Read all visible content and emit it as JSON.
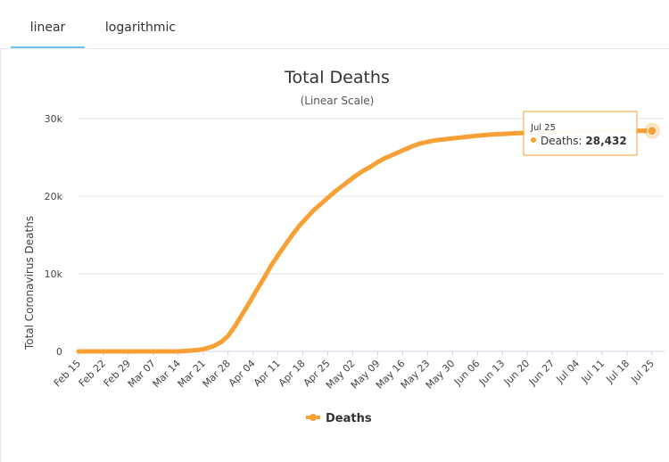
{
  "tabs": {
    "linear": "linear",
    "log": "logarithmic"
  },
  "chart_data": {
    "type": "line",
    "title": "Total Deaths",
    "subtitle": "(Linear Scale)",
    "ylabel": "Total Coronavirus Deaths",
    "xlabel": "",
    "ylim": [
      0,
      30000
    ],
    "yticks": [
      0,
      10000,
      20000,
      30000
    ],
    "ytick_labels": [
      "0",
      "10k",
      "20k",
      "30k"
    ],
    "categories": [
      "Feb 15",
      "Feb 22",
      "Feb 29",
      "Mar 07",
      "Mar 14",
      "Mar 21",
      "Mar 28",
      "Apr 04",
      "Apr 11",
      "Apr 18",
      "Apr 25",
      "May 02",
      "May 09",
      "May 16",
      "May 23",
      "May 30",
      "Jun 06",
      "Jun 13",
      "Jun 20",
      "Jun 27",
      "Jul 04",
      "Jul 11",
      "Jul 18",
      "Jul 25"
    ],
    "color": "#f7a035",
    "grid": true,
    "legend_position": "bottom",
    "series": [
      {
        "name": "Deaths",
        "values": [
          [
            0,
            0
          ],
          [
            7,
            0
          ],
          [
            14,
            0
          ],
          [
            21,
            0
          ],
          [
            28,
            0
          ],
          [
            31,
            80
          ],
          [
            34,
            200
          ],
          [
            36,
            400
          ],
          [
            38,
            700
          ],
          [
            40,
            1200
          ],
          [
            42,
            2000
          ],
          [
            44,
            3300
          ],
          [
            46,
            4800
          ],
          [
            48,
            6300
          ],
          [
            50,
            7900
          ],
          [
            52,
            9400
          ],
          [
            54,
            11000
          ],
          [
            56,
            12400
          ],
          [
            58,
            13700
          ],
          [
            60,
            15000
          ],
          [
            62,
            16200
          ],
          [
            64,
            17200
          ],
          [
            66,
            18200
          ],
          [
            68,
            19000
          ],
          [
            70,
            19800
          ],
          [
            72,
            20600
          ],
          [
            74,
            21300
          ],
          [
            76,
            22000
          ],
          [
            78,
            22700
          ],
          [
            80,
            23300
          ],
          [
            82,
            23800
          ],
          [
            84,
            24400
          ],
          [
            86,
            24900
          ],
          [
            88,
            25300
          ],
          [
            90,
            25700
          ],
          [
            92,
            26100
          ],
          [
            94,
            26500
          ],
          [
            96,
            26800
          ],
          [
            98,
            27000
          ],
          [
            100,
            27200
          ],
          [
            104,
            27400
          ],
          [
            108,
            27600
          ],
          [
            112,
            27800
          ],
          [
            116,
            27950
          ],
          [
            120,
            28050
          ],
          [
            124,
            28150
          ],
          [
            128,
            28200
          ],
          [
            132,
            28250
          ],
          [
            136,
            28300
          ],
          [
            140,
            28350
          ],
          [
            144,
            28380
          ],
          [
            148,
            28400
          ],
          [
            152,
            28420
          ],
          [
            156,
            28432
          ],
          [
            161,
            28432
          ]
        ]
      }
    ],
    "tooltip": {
      "date": "Jul 25",
      "label": "Deaths:",
      "value": "28,432"
    }
  }
}
